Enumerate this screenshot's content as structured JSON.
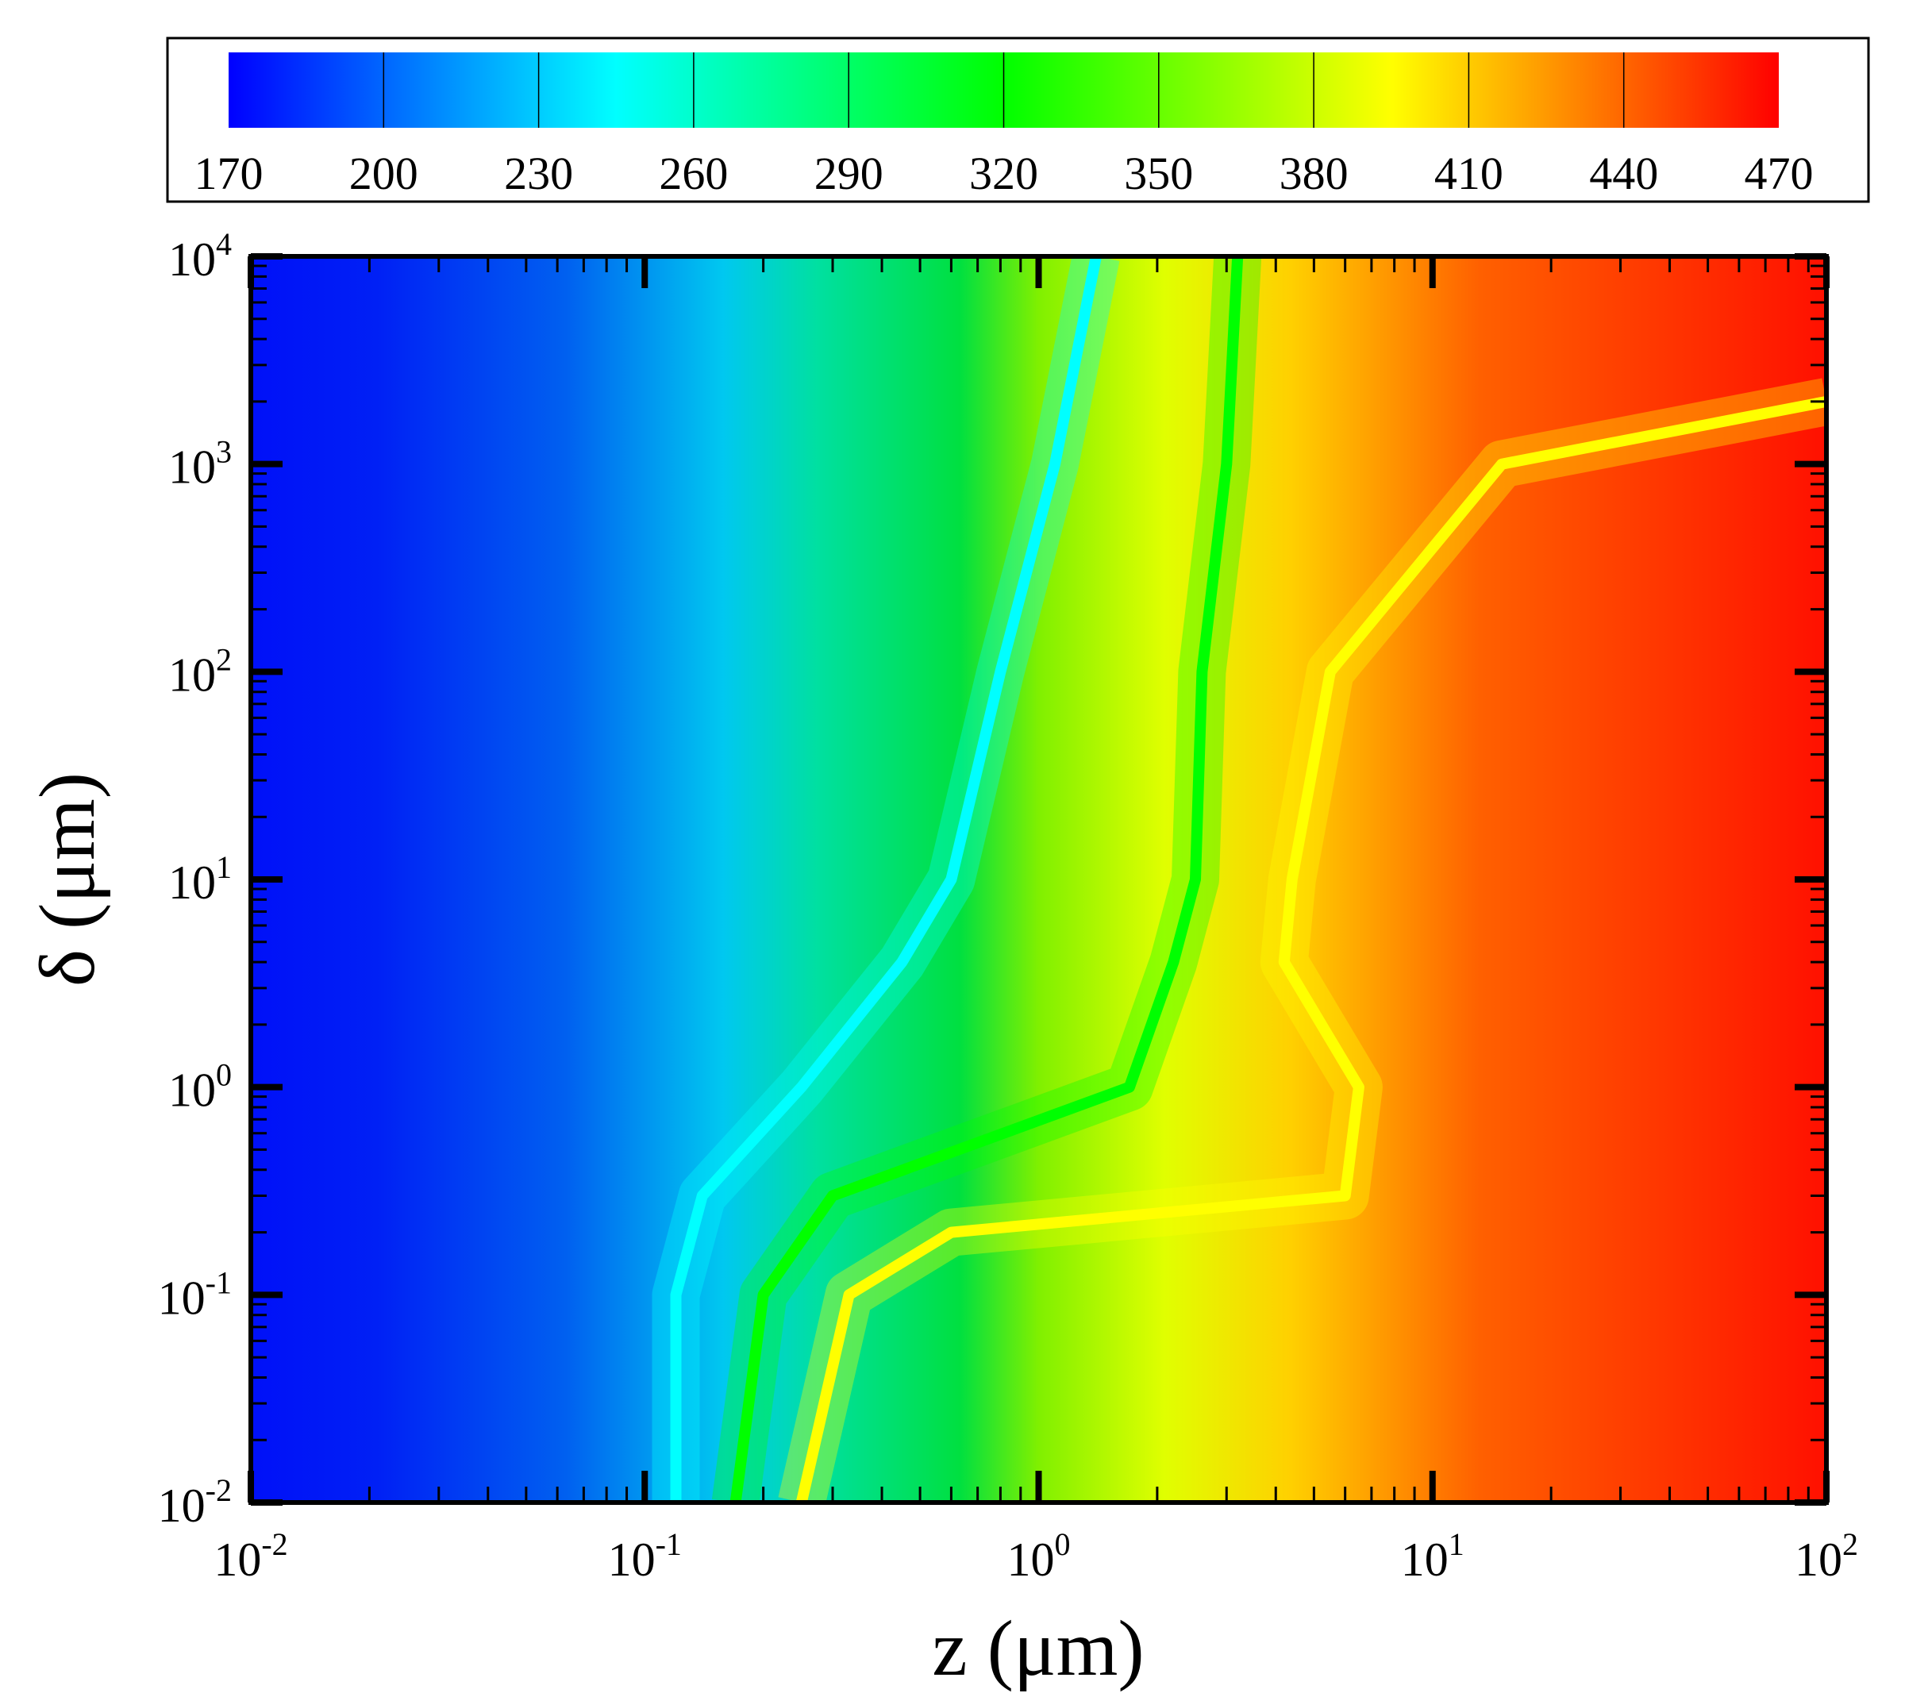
{
  "chart_data": {
    "type": "heatmap",
    "title": "",
    "xlabel": "z (μm)",
    "ylabel": "δ (μm)",
    "x_scale": "log",
    "y_scale": "log",
    "xlim": [
      0.01,
      100
    ],
    "ylim": [
      0.01,
      10000
    ],
    "x_ticks": [
      {
        "base": "10",
        "exp": "-2"
      },
      {
        "base": "10",
        "exp": "-1"
      },
      {
        "base": "10",
        "exp": "0"
      },
      {
        "base": "10",
        "exp": "1"
      },
      {
        "base": "10",
        "exp": "2"
      }
    ],
    "y_ticks": [
      {
        "base": "10",
        "exp": "-2"
      },
      {
        "base": "10",
        "exp": "-1"
      },
      {
        "base": "10",
        "exp": "0"
      },
      {
        "base": "10",
        "exp": "1"
      },
      {
        "base": "10",
        "exp": "2"
      },
      {
        "base": "10",
        "exp": "3"
      },
      {
        "base": "10",
        "exp": "4"
      }
    ],
    "colorbar": {
      "position": "top",
      "min": 170,
      "max": 470,
      "levels": [
        "170",
        "200",
        "230",
        "260",
        "290",
        "320",
        "350",
        "380",
        "410",
        "440",
        "470"
      ],
      "colors": [
        "#0000ff",
        "#00ffff",
        "#00ff00",
        "#ffff00",
        "#ff0000"
      ]
    },
    "contour_levels": [
      {
        "value": 260,
        "color": "#00ffff",
        "z_at_delta": [
          [
            0.01,
            0.12
          ],
          [
            0.1,
            0.12
          ],
          [
            0.3,
            0.14
          ],
          [
            1,
            0.25
          ],
          [
            4,
            0.45
          ],
          [
            10,
            0.6
          ],
          [
            100,
            0.8
          ],
          [
            1000,
            1.1
          ],
          [
            10000,
            1.4
          ]
        ]
      },
      {
        "value": 320,
        "color": "#00ff00",
        "z_at_delta": [
          [
            0.01,
            0.17
          ],
          [
            0.1,
            0.2
          ],
          [
            0.3,
            0.3
          ],
          [
            1,
            1.7
          ],
          [
            4,
            2.2
          ],
          [
            10,
            2.5
          ],
          [
            100,
            2.6
          ],
          [
            1000,
            3.0
          ],
          [
            10000,
            3.2
          ]
        ]
      },
      {
        "value": 380,
        "color": "#ffff00",
        "z_at_delta": [
          [
            0.01,
            0.25
          ],
          [
            0.1,
            0.33
          ],
          [
            0.2,
            0.6
          ],
          [
            0.3,
            6.0
          ],
          [
            1,
            6.5
          ],
          [
            4,
            4.2
          ],
          [
            10,
            4.4
          ],
          [
            100,
            5.5
          ],
          [
            1000,
            15
          ],
          [
            2000,
            100
          ]
        ]
      }
    ]
  }
}
